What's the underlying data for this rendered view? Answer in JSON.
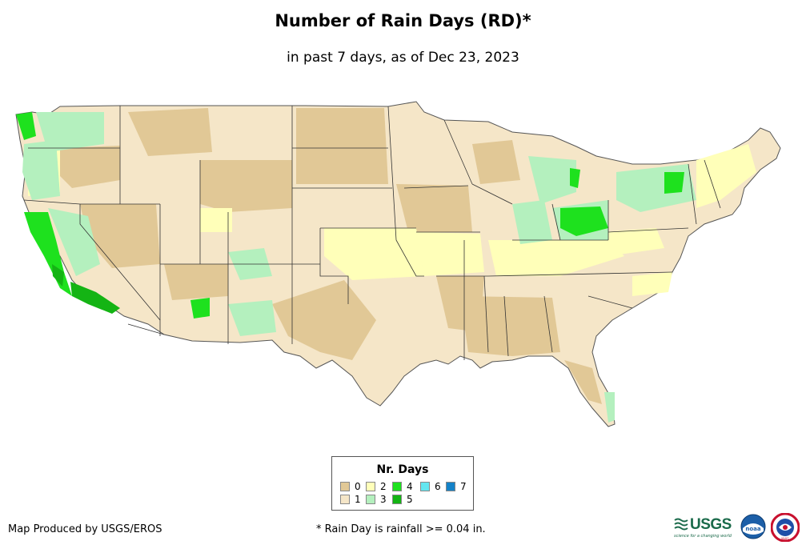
{
  "title": "Number of Rain Days (RD)*",
  "subtitle": "in past 7 days, as of Dec 23, 2023",
  "legend": {
    "title": "Nr. Days",
    "items": [
      {
        "label": "0",
        "color": "#e1c896"
      },
      {
        "label": "1",
        "color": "#f5e6c8"
      },
      {
        "label": "2",
        "color": "#ffffb9"
      },
      {
        "label": "3",
        "color": "#b4f0be"
      },
      {
        "label": "4",
        "color": "#1ee11e"
      },
      {
        "label": "5",
        "color": "#14b414"
      },
      {
        "label": "6",
        "color": "#64e6f0"
      },
      {
        "label": "7",
        "color": "#1482c8"
      }
    ]
  },
  "credit": "Map Produced by USGS/EROS",
  "footnote": "* Rain Day is rainfall >= 0.04 in.",
  "logos": {
    "usgs": "USGS",
    "usgs_tagline": "science for a changing world",
    "noaa": "noaa",
    "nws": "NWS"
  }
}
